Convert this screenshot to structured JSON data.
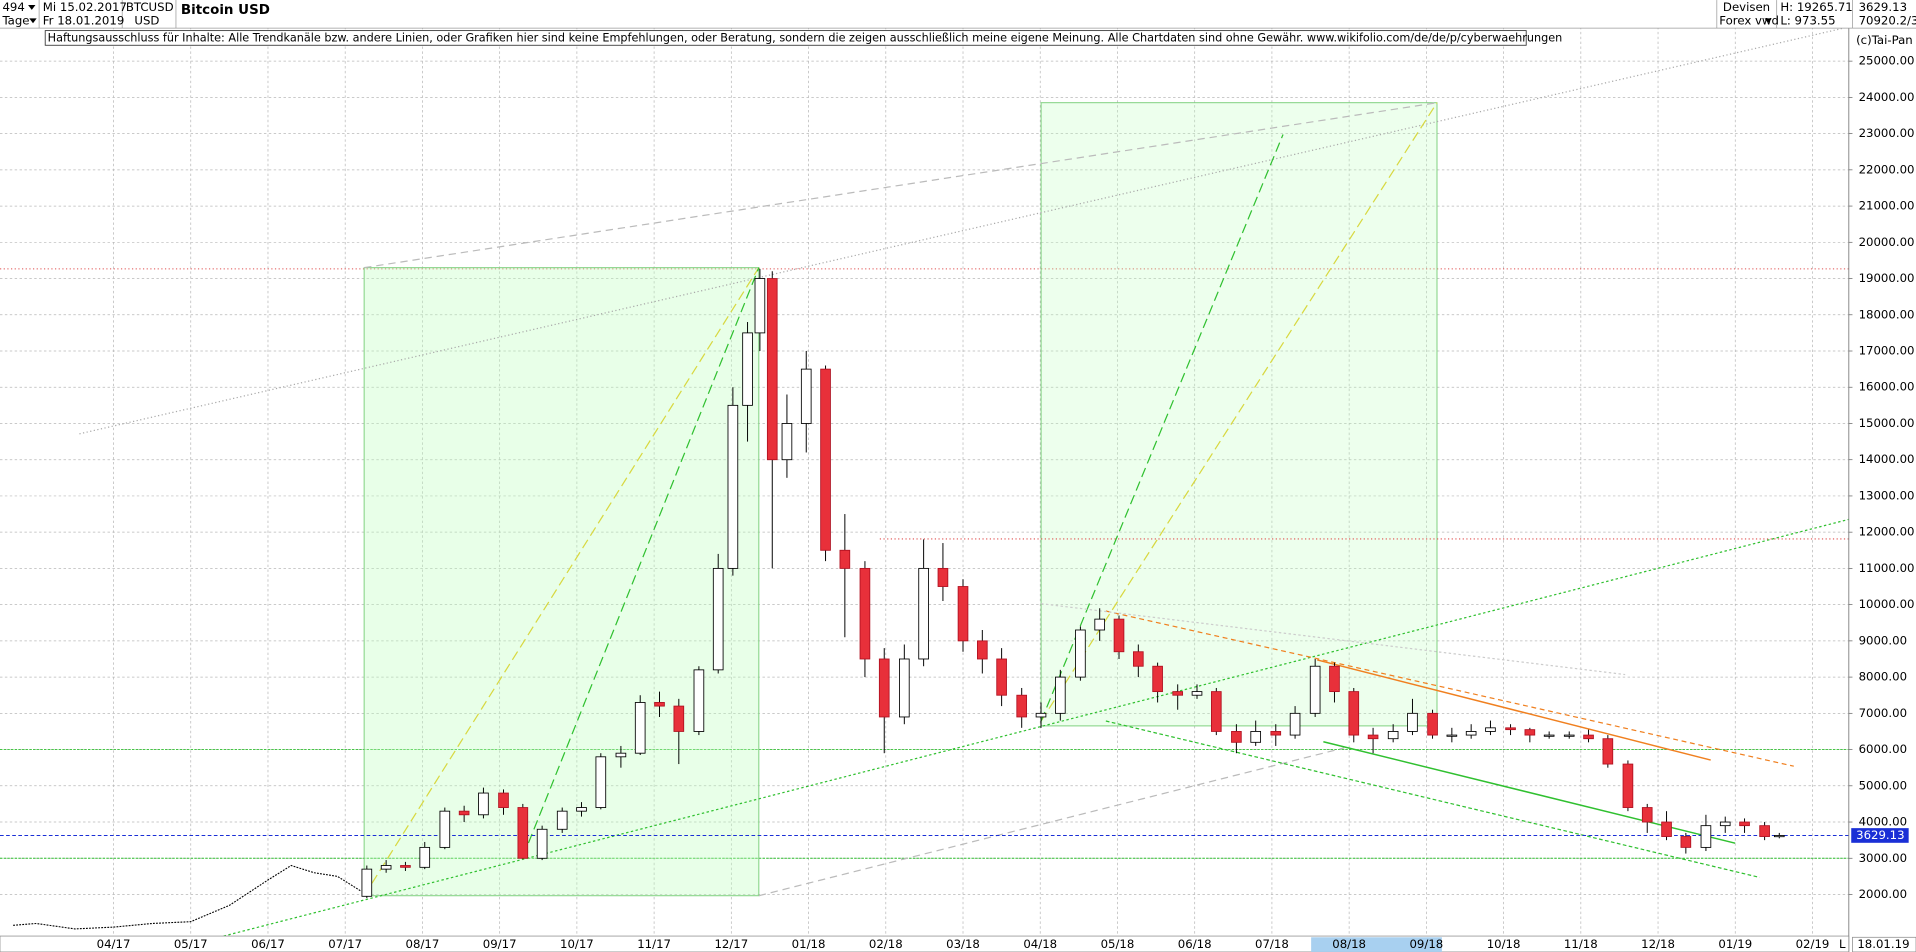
{
  "header": {
    "count": "494",
    "period": "Tage",
    "from": "Mi 15.02.2017",
    "to": "Fr 18.01.2019",
    "symbol": "BTCUSD",
    "currency": "USD",
    "market": "Devisen",
    "source": "Forex vwd",
    "high": "H: 19265.71",
    "low": "L: 973.55",
    "volume": "70920.2/3",
    "copyright": "(c)Tai-Pan",
    "disclaimer": "Haftungsausschluss für Inhalte: Alle Trendkanäle bzw. andere Linien, oder Grafiken hier sind keine Empfehlungen, oder Beratung, sondern die zeigen ausschließlich meine eigene Meinung. Alle Chartdaten sind ohne Gewähr.  www.wikifolio.com/de/de/p/cyberwaehrungen",
    "end_date": "18.01.19",
    "mode": "L"
  },
  "chart_data": {
    "type": "candlestick",
    "title": "Bitcoin USD",
    "xlim": [
      1.53,
      25.47
    ],
    "ylim": [
      853,
      25944
    ],
    "grid": true,
    "xticks": [
      {
        "value": 3,
        "label": "04/17"
      },
      {
        "value": 4,
        "label": "05/17"
      },
      {
        "value": 5,
        "label": "06/17"
      },
      {
        "value": 6,
        "label": "07/17"
      },
      {
        "value": 7,
        "label": "08/17"
      },
      {
        "value": 8,
        "label": "09/17"
      },
      {
        "value": 9,
        "label": "10/17"
      },
      {
        "value": 10,
        "label": "11/17"
      },
      {
        "value": 11,
        "label": "12/17"
      },
      {
        "value": 12,
        "label": "01/18"
      },
      {
        "value": 13,
        "label": "02/18"
      },
      {
        "value": 14,
        "label": "03/18"
      },
      {
        "value": 15,
        "label": "04/18"
      },
      {
        "value": 16,
        "label": "05/18"
      },
      {
        "value": 17,
        "label": "06/18"
      },
      {
        "value": 18,
        "label": "07/18"
      },
      {
        "value": 19,
        "label": "08/18"
      },
      {
        "value": 20,
        "label": "09/18"
      },
      {
        "value": 21,
        "label": "10/18"
      },
      {
        "value": 22,
        "label": "11/18"
      },
      {
        "value": 23,
        "label": "12/18"
      },
      {
        "value": 24,
        "label": "01/19"
      },
      {
        "value": 25,
        "label": "02/19"
      }
    ],
    "yticks": [
      {
        "value": 2000,
        "label": "2000.00"
      },
      {
        "value": 3000,
        "label": "3000.00"
      },
      {
        "value": 4000,
        "label": "4000.00"
      },
      {
        "value": 5000,
        "label": "5000.00"
      },
      {
        "value": 6000,
        "label": "6000.00"
      },
      {
        "value": 7000,
        "label": "7000.00"
      },
      {
        "value": 8000,
        "label": "8000.00"
      },
      {
        "value": 9000,
        "label": "9000.00"
      },
      {
        "value": 10000,
        "label": "10000.00"
      },
      {
        "value": 11000,
        "label": "11000.00"
      },
      {
        "value": 12000,
        "label": "12000.00"
      },
      {
        "value": 13000,
        "label": "13000.00"
      },
      {
        "value": 14000,
        "label": "14000.00"
      },
      {
        "value": 15000,
        "label": "15000.00"
      },
      {
        "value": 16000,
        "label": "16000.00"
      },
      {
        "value": 17000,
        "label": "17000.00"
      },
      {
        "value": 18000,
        "label": "18000.00"
      },
      {
        "value": 19000,
        "label": "19000.00"
      },
      {
        "value": 20000,
        "label": "20000.00"
      },
      {
        "value": 21000,
        "label": "21000.00"
      },
      {
        "value": 22000,
        "label": "22000.00"
      },
      {
        "value": 23000,
        "label": "23000.00"
      },
      {
        "value": 24000,
        "label": "24000.00"
      },
      {
        "value": 25000,
        "label": "25000.00"
      }
    ],
    "up_color": "#ffffff",
    "down_color": "#e8303a",
    "last_price": 3629.13,
    "last_color": "#1a2fd6",
    "levels": [
      {
        "value": 19265.71,
        "color": "#e05050"
      },
      {
        "value": 6000,
        "color": "#30c030"
      },
      {
        "value": 3000,
        "color": "#30c030"
      }
    ],
    "pre_series": {
      "color": "#000000",
      "x": [
        1.7,
        2.0,
        2.5,
        3.0,
        3.5,
        4.0,
        4.5,
        5.0,
        5.3,
        5.6,
        5.9,
        6.2
      ],
      "values": [
        1150,
        1200,
        1050,
        1100,
        1200,
        1250,
        1700,
        2400,
        2800,
        2600,
        2500,
        2100
      ]
    },
    "x": [
      6.28,
      6.53,
      6.78,
      7.03,
      7.29,
      7.54,
      7.79,
      8.05,
      8.3,
      8.55,
      8.81,
      9.06,
      9.31,
      9.57,
      9.82,
      10.07,
      10.32,
      10.58,
      10.83,
      11.02,
      11.21,
      11.37,
      11.53,
      11.72,
      11.97,
      12.22,
      12.47,
      12.73,
      12.98,
      13.24,
      13.49,
      13.74,
      14.0,
      14.25,
      14.5,
      14.76,
      15.01,
      15.26,
      15.52,
      15.77,
      16.02,
      16.27,
      16.52,
      16.78,
      17.03,
      17.28,
      17.54,
      17.79,
      18.05,
      18.3,
      18.56,
      18.81,
      19.06,
      19.31,
      19.57,
      19.82,
      20.08,
      20.33,
      20.58,
      20.83,
      21.09,
      21.34,
      21.59,
      21.85,
      22.1,
      22.35,
      22.61,
      22.86,
      23.11,
      23.36,
      23.62,
      23.87,
      24.12,
      24.38,
      24.57
    ],
    "open": [
      1950,
      2700,
      2800,
      2750,
      3300,
      4300,
      4200,
      4800,
      4400,
      3000,
      3800,
      4300,
      4400,
      5800,
      5900,
      7300,
      7200,
      6500,
      8200,
      11000,
      15500,
      17500,
      19000,
      14000,
      15000,
      16500,
      11500,
      11000,
      8500,
      6900,
      8500,
      11000,
      10500,
      9000,
      8500,
      7500,
      6900,
      7000,
      8000,
      9300,
      9600,
      8700,
      8300,
      7600,
      7500,
      7600,
      6500,
      6200,
      6500,
      6400,
      7000,
      8300,
      7600,
      6400,
      6300,
      6500,
      7000,
      6400,
      6400,
      6500,
      6600,
      6550,
      6400,
      6400,
      6400,
      6300,
      5600,
      4400,
      4000,
      3600,
      3300,
      3900,
      4000,
      3900,
      3600
    ],
    "high": [
      2800,
      2950,
      2900,
      3450,
      4400,
      4450,
      4950,
      4900,
      4500,
      3900,
      4400,
      4550,
      5900,
      6100,
      7500,
      7600,
      7400,
      8300,
      11400,
      16000,
      17800,
      19265.71,
      19200,
      15800,
      17000,
      16600,
      12500,
      11200,
      8800,
      8900,
      11800,
      11700,
      10700,
      9300,
      8800,
      7700,
      7300,
      8200,
      9400,
      9900,
      9700,
      8900,
      8400,
      7800,
      7800,
      7700,
      6700,
      6800,
      6700,
      7200,
      8500,
      8400,
      7700,
      6600,
      6700,
      7400,
      7100,
      6600,
      6700,
      6800,
      6700,
      6600,
      6500,
      6500,
      6550,
      6400,
      5700,
      4500,
      4300,
      3700,
      4200,
      4150,
      4100,
      4000,
      3700
    ],
    "low": [
      1900,
      2600,
      2650,
      2700,
      3250,
      4000,
      4100,
      4200,
      2980,
      2950,
      3700,
      4150,
      4350,
      5500,
      5850,
      6900,
      5600,
      6400,
      8100,
      10800,
      14500,
      17000,
      11000,
      13500,
      14200,
      11200,
      9100,
      8000,
      5900,
      6700,
      8300,
      10100,
      8700,
      8100,
      7200,
      6600,
      6600,
      6800,
      7900,
      9000,
      8500,
      8000,
      7300,
      7100,
      7400,
      6400,
      5900,
      6100,
      6100,
      6300,
      6900,
      7300,
      6200,
      5900,
      6200,
      6400,
      6300,
      6200,
      6300,
      6400,
      6400,
      6200,
      6300,
      6300,
      6200,
      5500,
      4300,
      3700,
      3500,
      3130,
      3200,
      3700,
      3700,
      3500,
      3550
    ],
    "close": [
      2700,
      2800,
      2750,
      3300,
      4300,
      4200,
      4800,
      4400,
      3000,
      3800,
      4300,
      4400,
      5800,
      5900,
      7300,
      7200,
      6500,
      8200,
      11000,
      15500,
      17500,
      19000,
      14000,
      15000,
      16500,
      11500,
      11000,
      8500,
      6900,
      8500,
      11000,
      10500,
      9000,
      8500,
      7500,
      6900,
      7000,
      8000,
      9300,
      9600,
      8700,
      8300,
      7600,
      7500,
      7600,
      6500,
      6200,
      6500,
      6400,
      7000,
      8300,
      7600,
      6400,
      6300,
      6500,
      7000,
      6400,
      6400,
      6500,
      6600,
      6550,
      6400,
      6400,
      6400,
      6300,
      5600,
      4400,
      4000,
      3600,
      3300,
      3900,
      4000,
      3900,
      3600,
      3629.13
    ]
  }
}
